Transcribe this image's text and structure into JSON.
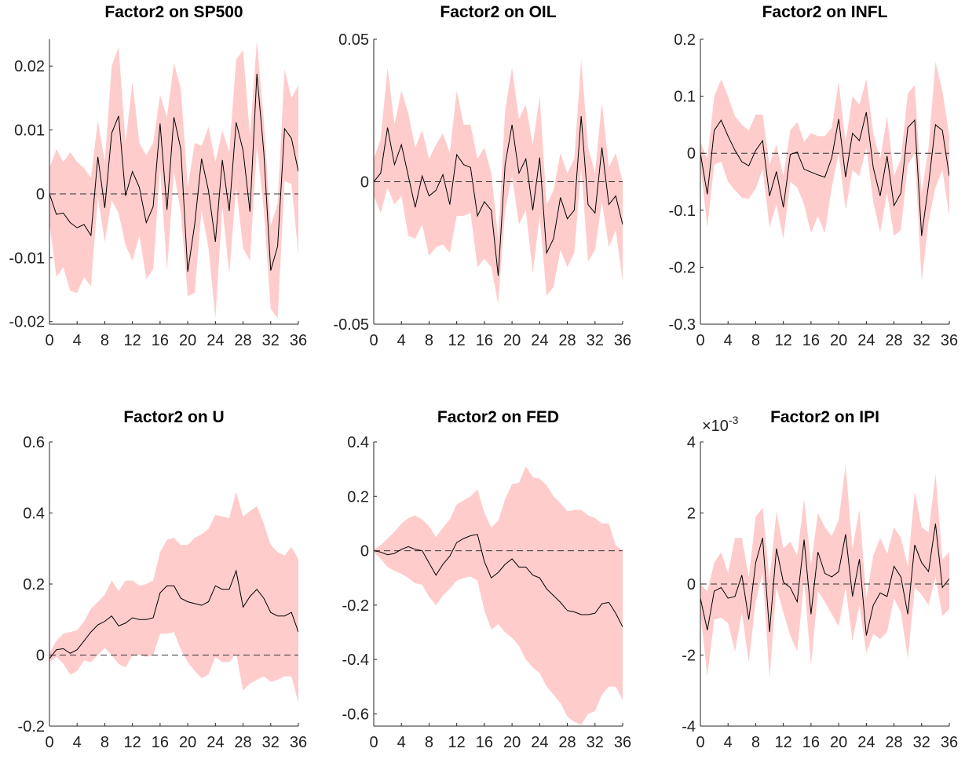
{
  "chart_data": [
    {
      "type": "line",
      "title": "Factor2 on SP500",
      "x": [
        0,
        1,
        2,
        3,
        4,
        5,
        6,
        7,
        8,
        9,
        10,
        11,
        12,
        13,
        14,
        15,
        16,
        17,
        18,
        19,
        20,
        21,
        22,
        23,
        24,
        25,
        26,
        27,
        28,
        29,
        30,
        31,
        32,
        33,
        34,
        35,
        36
      ],
      "values": [
        0,
        -0.0032,
        -0.003,
        -0.0045,
        -0.0053,
        -0.0048,
        -0.0065,
        0.0058,
        -0.0022,
        0.0095,
        0.0122,
        -0.0003,
        0.0035,
        0.001,
        -0.0045,
        -0.002,
        0.011,
        -0.0025,
        0.012,
        0.007,
        -0.0122,
        -0.0048,
        0.0055,
        0.0005,
        -0.0075,
        0.0053,
        -0.0027,
        0.0112,
        0.0068,
        -0.0028,
        0.0188,
        0.0065,
        -0.012,
        -0.0082,
        0.0102,
        0.0087,
        0.0035
      ],
      "band": {
        "upper": [
          0.004,
          0.007,
          0.005,
          0.0065,
          0.005,
          0.004,
          0.0025,
          0.0115,
          0.005,
          0.02,
          0.023,
          0.008,
          0.0175,
          0.008,
          0.006,
          0.008,
          0.0155,
          0.012,
          0.0205,
          0.0165,
          0.001,
          0.008,
          0.0075,
          0.0105,
          0.005,
          0.01,
          0.0065,
          0.021,
          0.0225,
          0.009,
          0.024,
          0.0115,
          -0.005,
          -0.0015,
          0.0195,
          0.015,
          0.017
        ],
        "lower": [
          -0.0045,
          -0.013,
          -0.0115,
          -0.0152,
          -0.0155,
          -0.013,
          -0.0145,
          -0.0005,
          -0.0075,
          -0.001,
          -0.003,
          -0.008,
          -0.0105,
          -0.0065,
          -0.0133,
          -0.0118,
          0.004,
          -0.012,
          0.0035,
          -0.003,
          -0.016,
          -0.0155,
          -0.0025,
          -0.0085,
          -0.0195,
          -0.002,
          -0.0125,
          0.001,
          -0.0085,
          -0.0105,
          0.0075,
          -0.0025,
          -0.018,
          -0.0195,
          0.002,
          0.0015,
          -0.0095
        ]
      },
      "line_color": "#000000",
      "band_color": "#ffcccc",
      "zero_line": true,
      "xlim": [
        0,
        36
      ],
      "xticks": [
        0,
        4,
        8,
        12,
        16,
        20,
        24,
        28,
        32,
        36
      ],
      "ylim": [
        -0.0204,
        0.0242
      ],
      "yticks": [
        -0.02,
        -0.01,
        0,
        0.01,
        0.02
      ]
    },
    {
      "type": "line",
      "title": "Factor2 on OIL",
      "x": [
        0,
        1,
        2,
        3,
        4,
        5,
        6,
        7,
        8,
        9,
        10,
        11,
        12,
        13,
        14,
        15,
        16,
        17,
        18,
        19,
        20,
        21,
        22,
        23,
        24,
        25,
        26,
        27,
        28,
        29,
        30,
        31,
        32,
        33,
        34,
        35,
        36
      ],
      "values": [
        0,
        0.003,
        0.019,
        0.006,
        0.013,
        0.002,
        -0.009,
        0.002,
        -0.005,
        -0.003,
        0.0025,
        -0.008,
        0.0095,
        0.006,
        0.005,
        -0.012,
        -0.007,
        -0.01,
        -0.033,
        0.006,
        0.02,
        0.003,
        0.008,
        -0.01,
        0.0085,
        -0.025,
        -0.02,
        -0.0055,
        -0.013,
        -0.01,
        0.023,
        -0.008,
        -0.011,
        0.012,
        -0.008,
        -0.005,
        -0.015
      ],
      "band": {
        "upper": [
          0.008,
          0.015,
          0.04,
          0.02,
          0.032,
          0.024,
          0.012,
          0.018,
          0.008,
          0.013,
          0.017,
          0.01,
          0.032,
          0.02,
          0.02,
          0.008,
          0.012,
          0.003,
          -0.02,
          0.025,
          0.04,
          0.022,
          0.027,
          0.013,
          0.03,
          -0.008,
          -0.003,
          0.01,
          0.003,
          0.008,
          0.043,
          0.012,
          0.003,
          0.028,
          0.005,
          0.01,
          0
        ],
        "lower": [
          -0.005,
          -0.011,
          -0.002,
          -0.008,
          -0.005,
          -0.019,
          -0.02,
          -0.015,
          -0.026,
          -0.023,
          -0.022,
          -0.025,
          -0.012,
          -0.012,
          -0.011,
          -0.03,
          -0.027,
          -0.03,
          -0.043,
          -0.01,
          0.002,
          -0.015,
          -0.01,
          -0.032,
          -0.012,
          -0.04,
          -0.037,
          -0.024,
          -0.03,
          -0.025,
          0.005,
          -0.028,
          -0.024,
          -0.007,
          -0.023,
          -0.017,
          -0.035
        ]
      },
      "line_color": "#000000",
      "band_color": "#ffcccc",
      "zero_line": true,
      "xlim": [
        0,
        36
      ],
      "xticks": [
        0,
        4,
        8,
        12,
        16,
        20,
        24,
        28,
        32,
        36
      ],
      "ylim": [
        -0.05,
        0.05
      ],
      "yticks": [
        -0.05,
        0,
        0.05
      ]
    },
    {
      "type": "line",
      "title": "Factor2 on INFL",
      "x": [
        0,
        1,
        2,
        3,
        4,
        5,
        6,
        7,
        8,
        9,
        10,
        11,
        12,
        13,
        14,
        15,
        16,
        17,
        18,
        19,
        20,
        21,
        22,
        23,
        24,
        25,
        26,
        27,
        28,
        29,
        30,
        31,
        32,
        33,
        34,
        35,
        36
      ],
      "values": [
        0,
        -0.072,
        0.04,
        0.058,
        0.03,
        0.005,
        -0.015,
        -0.022,
        0.005,
        0.022,
        -0.075,
        -0.032,
        -0.095,
        -0.002,
        0.002,
        -0.028,
        -0.033,
        -0.038,
        -0.042,
        -0.008,
        0.06,
        -0.042,
        0.035,
        0.022,
        0.072,
        -0.025,
        -0.075,
        -0.005,
        -0.092,
        -0.07,
        0.045,
        0.058,
        -0.145,
        -0.055,
        0.05,
        0.04,
        -0.04
      ],
      "band": {
        "upper": [
          0.02,
          -0.01,
          0.1,
          0.13,
          0.1,
          0.065,
          0.05,
          0.04,
          0.068,
          0.068,
          -0.02,
          0.015,
          -0.04,
          0.04,
          0.055,
          0.02,
          0.035,
          0.03,
          0.03,
          0.045,
          0.125,
          0.02,
          0.1,
          0.085,
          0.13,
          0.035,
          -0.01,
          0.065,
          -0.04,
          -0.01,
          0.105,
          0.12,
          -0.07,
          0.01,
          0.16,
          0.11,
          0.03
        ],
        "lower": [
          -0.02,
          -0.13,
          -0.02,
          -0.015,
          -0.05,
          -0.065,
          -0.078,
          -0.08,
          -0.062,
          -0.028,
          -0.13,
          -0.09,
          -0.15,
          -0.05,
          -0.06,
          -0.09,
          -0.14,
          -0.11,
          -0.14,
          -0.06,
          0,
          -0.1,
          -0.03,
          -0.04,
          0.01,
          -0.085,
          -0.14,
          -0.07,
          -0.145,
          -0.135,
          -0.02,
          0,
          -0.225,
          -0.12,
          -0.06,
          -0.03,
          -0.11
        ]
      },
      "line_color": "#000000",
      "band_color": "#ffcccc",
      "zero_line": true,
      "xlim": [
        0,
        36
      ],
      "xticks": [
        0,
        4,
        8,
        12,
        16,
        20,
        24,
        28,
        32,
        36
      ],
      "ylim": [
        -0.3,
        0.2
      ],
      "yticks": [
        -0.3,
        -0.2,
        -0.1,
        0,
        0.1,
        0.2
      ]
    },
    {
      "type": "line",
      "title": "Factor2 on U",
      "x": [
        0,
        1,
        2,
        3,
        4,
        5,
        6,
        7,
        8,
        9,
        10,
        11,
        12,
        13,
        14,
        15,
        16,
        17,
        18,
        19,
        20,
        21,
        22,
        23,
        24,
        25,
        26,
        27,
        28,
        29,
        30,
        31,
        32,
        33,
        34,
        35,
        36
      ],
      "values": [
        -0.01,
        0.015,
        0.018,
        0.005,
        0.015,
        0.04,
        0.065,
        0.085,
        0.095,
        0.11,
        0.082,
        0.09,
        0.105,
        0.1,
        0.1,
        0.105,
        0.175,
        0.195,
        0.195,
        0.16,
        0.15,
        0.145,
        0.14,
        0.15,
        0.195,
        0.185,
        0.185,
        0.237,
        0.135,
        0.165,
        0.185,
        0.16,
        0.12,
        0.11,
        0.11,
        0.12,
        0.065
      ],
      "band": {
        "upper": [
          0.005,
          0.04,
          0.06,
          0.065,
          0.07,
          0.095,
          0.13,
          0.15,
          0.17,
          0.21,
          0.18,
          0.21,
          0.21,
          0.195,
          0.2,
          0.21,
          0.29,
          0.325,
          0.33,
          0.31,
          0.31,
          0.33,
          0.34,
          0.355,
          0.395,
          0.39,
          0.385,
          0.46,
          0.39,
          0.405,
          0.42,
          0.37,
          0.31,
          0.29,
          0.28,
          0.305,
          0.27
        ],
        "lower": [
          -0.02,
          -0.005,
          -0.025,
          -0.055,
          -0.045,
          -0.015,
          -0.02,
          0,
          0.02,
          0,
          -0.025,
          -0.035,
          0,
          0,
          -0.005,
          0,
          0.06,
          0.06,
          0.065,
          0.015,
          -0.02,
          -0.045,
          -0.065,
          -0.055,
          -0.005,
          -0.02,
          -0.02,
          0.005,
          -0.1,
          -0.08,
          -0.07,
          -0.06,
          -0.075,
          -0.07,
          -0.06,
          -0.06,
          -0.135
        ]
      },
      "line_color": "#000000",
      "band_color": "#ffcccc",
      "zero_line": true,
      "xlim": [
        0,
        36
      ],
      "xticks": [
        0,
        4,
        8,
        12,
        16,
        20,
        24,
        28,
        32,
        36
      ],
      "ylim": [
        -0.2,
        0.6
      ],
      "yticks": [
        -0.2,
        0,
        0.2,
        0.4,
        0.6
      ]
    },
    {
      "type": "line",
      "title": "Factor2 on FED",
      "x": [
        0,
        1,
        2,
        3,
        4,
        5,
        6,
        7,
        8,
        9,
        10,
        11,
        12,
        13,
        14,
        15,
        16,
        17,
        18,
        19,
        20,
        21,
        22,
        23,
        24,
        25,
        26,
        27,
        28,
        29,
        30,
        31,
        32,
        33,
        34,
        35,
        36
      ],
      "values": [
        0,
        -0.005,
        -0.015,
        -0.01,
        0.005,
        0.015,
        0.005,
        0,
        -0.045,
        -0.09,
        -0.05,
        -0.02,
        0.03,
        0.045,
        0.055,
        0.06,
        -0.04,
        -0.1,
        -0.08,
        -0.05,
        -0.03,
        -0.06,
        -0.06,
        -0.09,
        -0.1,
        -0.14,
        -0.165,
        -0.19,
        -0.22,
        -0.225,
        -0.235,
        -0.235,
        -0.23,
        -0.195,
        -0.19,
        -0.23,
        -0.28
      ],
      "band": {
        "upper": [
          0.005,
          0.02,
          0.045,
          0.07,
          0.1,
          0.12,
          0.13,
          0.115,
          0.09,
          0.05,
          0.085,
          0.115,
          0.17,
          0.185,
          0.2,
          0.225,
          0.14,
          0.085,
          0.11,
          0.19,
          0.245,
          0.25,
          0.31,
          0.27,
          0.265,
          0.24,
          0.2,
          0.175,
          0.145,
          0.15,
          0.15,
          0.13,
          0.12,
          0.1,
          0.1,
          0.02,
          0
        ],
        "lower": [
          -0.005,
          -0.03,
          -0.06,
          -0.075,
          -0.085,
          -0.1,
          -0.12,
          -0.125,
          -0.17,
          -0.2,
          -0.165,
          -0.14,
          -0.11,
          -0.1,
          -0.095,
          -0.11,
          -0.22,
          -0.29,
          -0.27,
          -0.3,
          -0.32,
          -0.35,
          -0.4,
          -0.43,
          -0.45,
          -0.5,
          -0.53,
          -0.56,
          -0.61,
          -0.63,
          -0.64,
          -0.6,
          -0.59,
          -0.53,
          -0.5,
          -0.5,
          -0.55
        ]
      },
      "line_color": "#000000",
      "band_color": "#ffcccc",
      "zero_line": true,
      "xlim": [
        0,
        36
      ],
      "xticks": [
        0,
        4,
        8,
        12,
        16,
        20,
        24,
        28,
        32,
        36
      ],
      "ylim": [
        -0.645,
        0.4
      ],
      "yticks": [
        -0.6,
        -0.4,
        -0.2,
        0,
        0.2,
        0.4
      ]
    },
    {
      "type": "line",
      "title": "Factor2 on IPI",
      "x": [
        0,
        1,
        2,
        3,
        4,
        5,
        6,
        7,
        8,
        9,
        10,
        11,
        12,
        13,
        14,
        15,
        16,
        17,
        18,
        19,
        20,
        21,
        22,
        23,
        24,
        25,
        26,
        27,
        28,
        29,
        30,
        31,
        32,
        33,
        34,
        35,
        36
      ],
      "values": [
        -0.0004,
        -0.0013,
        -0.0002,
        -0.0001,
        -0.0004,
        -0.00035,
        0.00025,
        -0.001,
        0.0006,
        0.0013,
        -0.00135,
        0.001,
        5e-05,
        -0.0001,
        -0.0005,
        0.00125,
        -0.00085,
        0.0009,
        0.0003,
        0.0002,
        0.00035,
        0.0014,
        -0.00035,
        0.0007,
        -0.00145,
        -0.0006,
        -0.00025,
        -0.00035,
        0.0005,
        0.0002,
        -0.00085,
        0.0011,
        0.0006,
        0.00035,
        0.0017,
        -0.0001,
        0.00015
      ],
      "band": {
        "upper": [
          0,
          -0.0002,
          0.0006,
          0.0009,
          0.0003,
          0.0013,
          0.0013,
          0.0002,
          0.0019,
          0.00215,
          0.0001,
          0.00205,
          0.001,
          0.0012,
          0.0008,
          0.0024,
          0.00055,
          0.002,
          0.0016,
          0.00135,
          0.0018,
          0.00335,
          0.001,
          0.0021,
          -0.0004,
          0.0008,
          0.0013,
          0.00085,
          0.0016,
          0.0013,
          0.0005,
          0.0026,
          0.0016,
          0.00145,
          0.0031,
          0.0007,
          0.0009
        ],
        "lower": [
          -0.0008,
          -0.0026,
          -0.001,
          -0.00095,
          -0.0011,
          -0.0019,
          -0.0008,
          -0.0022,
          -0.0005,
          0.0003,
          -0.00265,
          -0.0001,
          -0.0008,
          -0.00145,
          -0.0019,
          0.0001,
          -0.0023,
          -0.0002,
          -0.0005,
          -0.00085,
          -0.0012,
          -0.0001,
          -0.0016,
          -0.0006,
          -0.00195,
          -0.0014,
          -0.00155,
          -0.00135,
          -0.0004,
          -0.0008,
          -0.0021,
          -0.0001,
          -0.0003,
          -0.0006,
          0.0002,
          -0.0009,
          -0.0007
        ]
      },
      "line_color": "#000000",
      "band_color": "#ffcccc",
      "zero_line": true,
      "xlim": [
        0,
        36
      ],
      "xticks": [
        0,
        4,
        8,
        12,
        16,
        20,
        24,
        28,
        32,
        36
      ],
      "ylim": [
        -0.004,
        0.004
      ],
      "yticks": [
        {
          "value": -0.004,
          "label": "-4"
        },
        {
          "value": -0.002,
          "label": "-2"
        },
        {
          "value": 0,
          "label": "0"
        },
        {
          "value": 0.002,
          "label": "2"
        },
        {
          "value": 0.004,
          "label": "4"
        }
      ],
      "y_multiplier": {
        "base": "×10",
        "exponent": "-3"
      }
    }
  ]
}
